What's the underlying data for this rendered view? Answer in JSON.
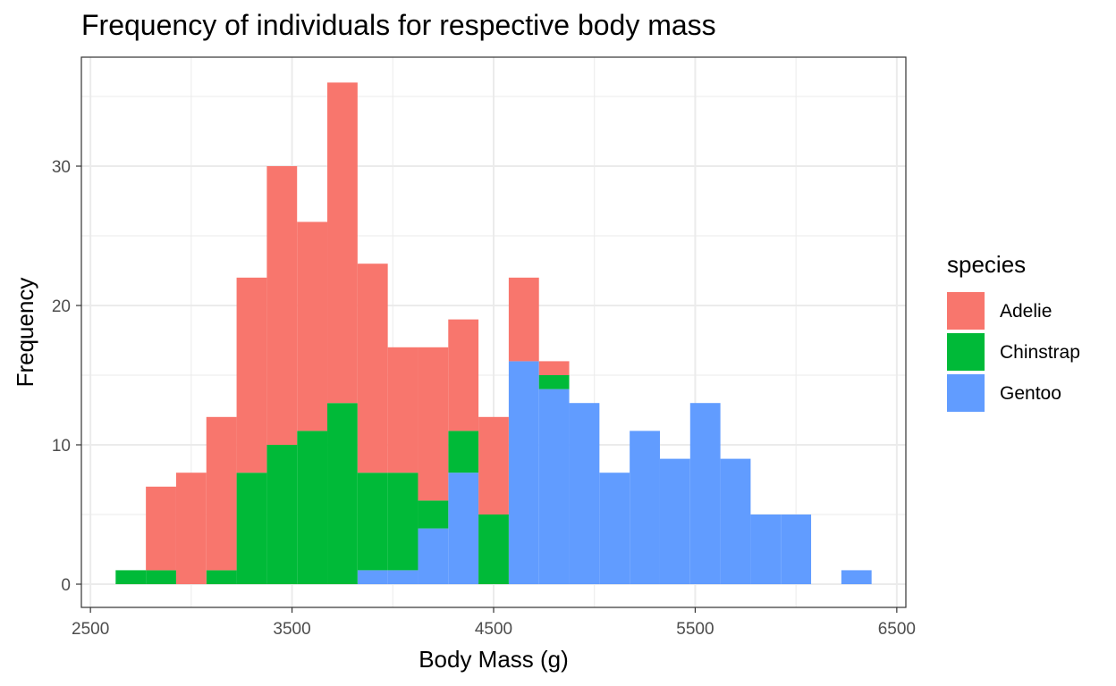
{
  "chart_data": {
    "type": "bar",
    "title": "Frequency of individuals for respective body mass",
    "xlabel": "Body Mass (g)",
    "ylabel": "Frequency",
    "xlim": [
      2500,
      6500
    ],
    "ylim": [
      0,
      37
    ],
    "x_ticks": [
      2500,
      3500,
      4500,
      5500,
      6500
    ],
    "y_ticks": [
      0,
      10,
      20,
      30
    ],
    "grid": true,
    "stacked": true,
    "legend": {
      "title": "species",
      "position": "right"
    },
    "bins": [
      {
        "x0": 2625,
        "x1": 2775
      },
      {
        "x0": 2775,
        "x1": 2925
      },
      {
        "x0": 2925,
        "x1": 3075
      },
      {
        "x0": 3075,
        "x1": 3225
      },
      {
        "x0": 3225,
        "x1": 3375
      },
      {
        "x0": 3375,
        "x1": 3525
      },
      {
        "x0": 3525,
        "x1": 3675
      },
      {
        "x0": 3675,
        "x1": 3825
      },
      {
        "x0": 3825,
        "x1": 3975
      },
      {
        "x0": 3975,
        "x1": 4125
      },
      {
        "x0": 4125,
        "x1": 4275
      },
      {
        "x0": 4275,
        "x1": 4425
      },
      {
        "x0": 4425,
        "x1": 4575
      },
      {
        "x0": 4575,
        "x1": 4725
      },
      {
        "x0": 4725,
        "x1": 4875
      },
      {
        "x0": 4875,
        "x1": 5025
      },
      {
        "x0": 5025,
        "x1": 5175
      },
      {
        "x0": 5175,
        "x1": 5325
      },
      {
        "x0": 5325,
        "x1": 5475
      },
      {
        "x0": 5475,
        "x1": 5625
      },
      {
        "x0": 5625,
        "x1": 5775
      },
      {
        "x0": 5775,
        "x1": 5925
      },
      {
        "x0": 5925,
        "x1": 6075
      },
      {
        "x0": 6075,
        "x1": 6225
      },
      {
        "x0": 6225,
        "x1": 6375
      }
    ],
    "series": [
      {
        "name": "Gentoo",
        "color": "#619CFF",
        "values": [
          0,
          0,
          0,
          0,
          0,
          0,
          0,
          0,
          1,
          1,
          4,
          8,
          0,
          16,
          14,
          13,
          8,
          11,
          9,
          13,
          9,
          5,
          5,
          0,
          1
        ]
      },
      {
        "name": "Chinstrap",
        "color": "#00BA38",
        "values": [
          1,
          1,
          0,
          1,
          8,
          10,
          11,
          13,
          7,
          7,
          2,
          3,
          5,
          0,
          1,
          0,
          0,
          0,
          0,
          0,
          0,
          0,
          0,
          0,
          0
        ]
      },
      {
        "name": "Adelie",
        "color": "#F8766D",
        "values": [
          0,
          6,
          8,
          11,
          14,
          20,
          15,
          23,
          15,
          9,
          11,
          8,
          7,
          6,
          1,
          0,
          0,
          0,
          0,
          0,
          0,
          0,
          0,
          0,
          0
        ]
      }
    ],
    "legend_order": [
      "Adelie",
      "Chinstrap",
      "Gentoo"
    ]
  }
}
